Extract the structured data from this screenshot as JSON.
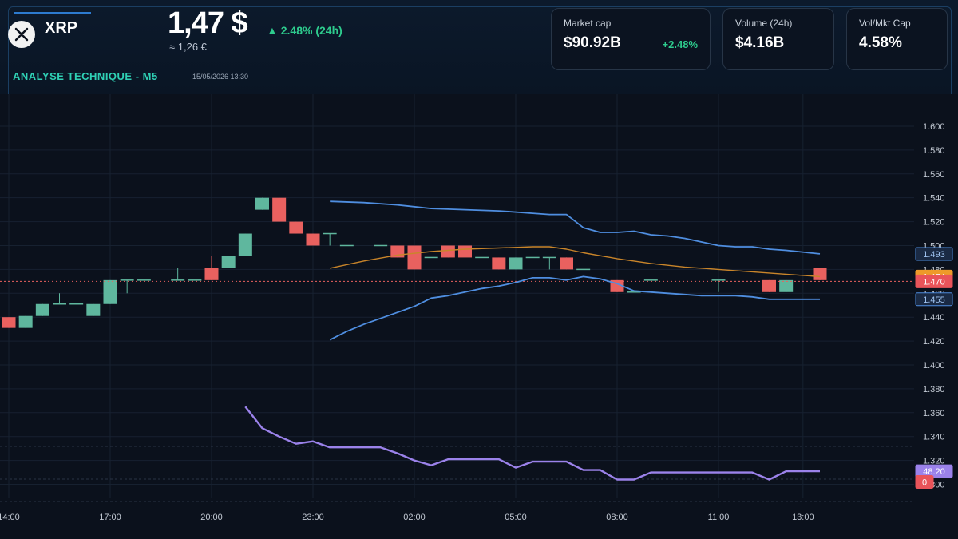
{
  "header": {
    "coin": "XRP",
    "price": "1,47 $",
    "change": "▲ 2.48% (24h)",
    "price_eur": "≈ 1,26 €",
    "analysis_label": "ANALYSE TECHNIQUE - M5",
    "timestamp": "15/05/2026 13:30"
  },
  "cards": {
    "market_cap": {
      "label": "Market cap",
      "value": "$90.92B",
      "change": "+2.48%"
    },
    "volume": {
      "label": "Volume (24h)",
      "value": "$4.16B"
    },
    "vol_mkt": {
      "label": "Vol/Mkt Cap",
      "value": "4.58%"
    }
  },
  "colors": {
    "up": "#5fb79e",
    "down": "#e9615f",
    "bands": "#4f8ee0",
    "ma": "#c9852a",
    "rsi": "#9b82ea",
    "price_line": "#e9615f"
  },
  "chart_data": {
    "type": "candlestick",
    "x_tick_labels": [
      "14:00",
      "17:00",
      "20:00",
      "23:00",
      "02:00",
      "05:00",
      "08:00",
      "11:00",
      "13:00"
    ],
    "x_tick_hours": [
      14,
      17,
      20,
      23,
      26,
      29,
      32,
      35,
      37.5
    ],
    "x_range_hours": [
      14,
      38
    ],
    "price_ticks": [
      "1.300",
      "1.320",
      "1.340",
      "1.360",
      "1.380",
      "1.400",
      "1.420",
      "1.440",
      "1.460",
      "1.480",
      "1.500",
      "1.520",
      "1.540",
      "1.560",
      "1.580",
      "1.600"
    ],
    "ylim": [
      1.295,
      1.608
    ],
    "candles": [
      {
        "t": 14.0,
        "o": 1.44,
        "c": 1.431,
        "h": 1.44,
        "l": 1.431
      },
      {
        "t": 14.5,
        "o": 1.431,
        "c": 1.441,
        "h": 1.441,
        "l": 1.431
      },
      {
        "t": 15.0,
        "o": 1.441,
        "c": 1.451,
        "h": 1.451,
        "l": 1.441
      },
      {
        "t": 15.5,
        "o": 1.451,
        "c": 1.451,
        "h": 1.46,
        "l": 1.451
      },
      {
        "t": 16.0,
        "o": 1.451,
        "c": 1.451,
        "h": 1.451,
        "l": 1.451
      },
      {
        "t": 16.5,
        "o": 1.441,
        "c": 1.451,
        "h": 1.451,
        "l": 1.441
      },
      {
        "t": 17.0,
        "o": 1.451,
        "c": 1.471,
        "h": 1.471,
        "l": 1.451
      },
      {
        "t": 17.5,
        "o": 1.471,
        "c": 1.471,
        "h": 1.471,
        "l": 1.46
      },
      {
        "t": 18.0,
        "o": 1.471,
        "c": 1.471,
        "h": 1.471,
        "l": 1.471
      },
      {
        "t": 19.0,
        "o": 1.471,
        "c": 1.471,
        "h": 1.481,
        "l": 1.471
      },
      {
        "t": 19.5,
        "o": 1.471,
        "c": 1.471,
        "h": 1.471,
        "l": 1.471
      },
      {
        "t": 20.0,
        "o": 1.481,
        "c": 1.471,
        "h": 1.491,
        "l": 1.471
      },
      {
        "t": 20.5,
        "o": 1.481,
        "c": 1.491,
        "h": 1.491,
        "l": 1.481
      },
      {
        "t": 21.0,
        "o": 1.491,
        "c": 1.51,
        "h": 1.51,
        "l": 1.491
      },
      {
        "t": 21.5,
        "o": 1.53,
        "c": 1.54,
        "h": 1.54,
        "l": 1.53
      },
      {
        "t": 22.0,
        "o": 1.54,
        "c": 1.52,
        "h": 1.54,
        "l": 1.52
      },
      {
        "t": 22.5,
        "o": 1.52,
        "c": 1.51,
        "h": 1.52,
        "l": 1.51
      },
      {
        "t": 23.0,
        "o": 1.51,
        "c": 1.5,
        "h": 1.51,
        "l": 1.5
      },
      {
        "t": 23.5,
        "o": 1.51,
        "c": 1.51,
        "h": 1.51,
        "l": 1.5
      },
      {
        "t": 24.0,
        "o": 1.5,
        "c": 1.5,
        "h": 1.5,
        "l": 1.5
      },
      {
        "t": 25.0,
        "o": 1.5,
        "c": 1.5,
        "h": 1.5,
        "l": 1.5
      },
      {
        "t": 25.5,
        "o": 1.5,
        "c": 1.49,
        "h": 1.5,
        "l": 1.49
      },
      {
        "t": 26.0,
        "o": 1.5,
        "c": 1.48,
        "h": 1.5,
        "l": 1.48
      },
      {
        "t": 26.5,
        "o": 1.49,
        "c": 1.49,
        "h": 1.49,
        "l": 1.49
      },
      {
        "t": 27.0,
        "o": 1.5,
        "c": 1.49,
        "h": 1.5,
        "l": 1.49
      },
      {
        "t": 27.5,
        "o": 1.5,
        "c": 1.49,
        "h": 1.5,
        "l": 1.49
      },
      {
        "t": 28.0,
        "o": 1.49,
        "c": 1.49,
        "h": 1.49,
        "l": 1.49
      },
      {
        "t": 28.5,
        "o": 1.49,
        "c": 1.48,
        "h": 1.49,
        "l": 1.48
      },
      {
        "t": 29.0,
        "o": 1.48,
        "c": 1.49,
        "h": 1.49,
        "l": 1.48
      },
      {
        "t": 29.5,
        "o": 1.49,
        "c": 1.49,
        "h": 1.49,
        "l": 1.49
      },
      {
        "t": 30.0,
        "o": 1.49,
        "c": 1.49,
        "h": 1.49,
        "l": 1.48
      },
      {
        "t": 30.5,
        "o": 1.49,
        "c": 1.48,
        "h": 1.49,
        "l": 1.48
      },
      {
        "t": 31.0,
        "o": 1.48,
        "c": 1.48,
        "h": 1.48,
        "l": 1.48
      },
      {
        "t": 32.0,
        "o": 1.471,
        "c": 1.461,
        "h": 1.471,
        "l": 1.461
      },
      {
        "t": 32.5,
        "o": 1.461,
        "c": 1.461,
        "h": 1.461,
        "l": 1.461
      },
      {
        "t": 33.0,
        "o": 1.471,
        "c": 1.471,
        "h": 1.471,
        "l": 1.471
      },
      {
        "t": 35.0,
        "o": 1.471,
        "c": 1.471,
        "h": 1.471,
        "l": 1.461
      },
      {
        "t": 36.5,
        "o": 1.471,
        "c": 1.461,
        "h": 1.471,
        "l": 1.461
      },
      {
        "t": 37.0,
        "o": 1.461,
        "c": 1.471,
        "h": 1.471,
        "l": 1.461
      },
      {
        "t": 38.0,
        "o": 1.481,
        "c": 1.471,
        "h": 1.481,
        "l": 1.471
      }
    ],
    "bollinger_upper": [
      [
        23.5,
        1.537
      ],
      [
        24.5,
        1.536
      ],
      [
        25.5,
        1.534
      ],
      [
        26.5,
        1.531
      ],
      [
        27.5,
        1.53
      ],
      [
        28.5,
        1.529
      ],
      [
        29.5,
        1.527
      ],
      [
        30.0,
        1.526
      ],
      [
        30.5,
        1.526
      ],
      [
        31.0,
        1.515
      ],
      [
        31.5,
        1.511
      ],
      [
        32.0,
        1.511
      ],
      [
        32.5,
        1.512
      ],
      [
        33.0,
        1.509
      ],
      [
        33.5,
        1.508
      ],
      [
        34.0,
        1.506
      ],
      [
        34.5,
        1.503
      ],
      [
        35.0,
        1.5
      ],
      [
        35.5,
        1.499
      ],
      [
        36.0,
        1.499
      ],
      [
        36.5,
        1.497
      ],
      [
        37.0,
        1.496
      ],
      [
        38.0,
        1.493
      ]
    ],
    "bollinger_lower": [
      [
        23.5,
        1.421
      ],
      [
        24.0,
        1.428
      ],
      [
        24.5,
        1.434
      ],
      [
        25.0,
        1.439
      ],
      [
        25.5,
        1.444
      ],
      [
        26.0,
        1.449
      ],
      [
        26.5,
        1.456
      ],
      [
        27.0,
        1.458
      ],
      [
        27.5,
        1.461
      ],
      [
        28.0,
        1.464
      ],
      [
        28.5,
        1.466
      ],
      [
        29.0,
        1.469
      ],
      [
        29.5,
        1.473
      ],
      [
        30.0,
        1.473
      ],
      [
        30.5,
        1.471
      ],
      [
        31.0,
        1.474
      ],
      [
        31.5,
        1.472
      ],
      [
        32.0,
        1.468
      ],
      [
        32.5,
        1.462
      ],
      [
        33.0,
        1.461
      ],
      [
        33.5,
        1.46
      ],
      [
        34.0,
        1.459
      ],
      [
        34.5,
        1.458
      ],
      [
        35.0,
        1.458
      ],
      [
        35.5,
        1.458
      ],
      [
        36.0,
        1.457
      ],
      [
        36.5,
        1.455
      ],
      [
        37.0,
        1.455
      ],
      [
        38.0,
        1.455
      ]
    ],
    "moving_average": [
      [
        23.5,
        1.481
      ],
      [
        24.5,
        1.487
      ],
      [
        25.5,
        1.492
      ],
      [
        26.5,
        1.495
      ],
      [
        27.5,
        1.497
      ],
      [
        28.5,
        1.498
      ],
      [
        29.5,
        1.499
      ],
      [
        30.0,
        1.499
      ],
      [
        30.5,
        1.497
      ],
      [
        31.0,
        1.494
      ],
      [
        32.0,
        1.489
      ],
      [
        33.0,
        1.485
      ],
      [
        34.0,
        1.482
      ],
      [
        35.0,
        1.48
      ],
      [
        36.0,
        1.478
      ],
      [
        37.0,
        1.476
      ],
      [
        38.0,
        1.474
      ]
    ],
    "rsi": [
      [
        21.0,
        1.365
      ],
      [
        21.5,
        1.347
      ],
      [
        22.0,
        1.34
      ],
      [
        22.5,
        1.334
      ],
      [
        23.0,
        1.336
      ],
      [
        23.5,
        1.331
      ],
      [
        24.0,
        1.331
      ],
      [
        25.0,
        1.331
      ],
      [
        25.5,
        1.326
      ],
      [
        26.0,
        1.32
      ],
      [
        26.5,
        1.316
      ],
      [
        27.0,
        1.321
      ],
      [
        28.0,
        1.321
      ],
      [
        28.5,
        1.321
      ],
      [
        29.0,
        1.314
      ],
      [
        29.5,
        1.319
      ],
      [
        30.0,
        1.319
      ],
      [
        30.5,
        1.319
      ],
      [
        31.0,
        1.312
      ],
      [
        31.5,
        1.312
      ],
      [
        32.0,
        1.304
      ],
      [
        32.5,
        1.304
      ],
      [
        33.0,
        1.31
      ],
      [
        34.0,
        1.31
      ],
      [
        35.0,
        1.31
      ],
      [
        36.0,
        1.31
      ],
      [
        36.5,
        1.304
      ],
      [
        37.0,
        1.311
      ],
      [
        38.0,
        1.311
      ]
    ],
    "current_price": 1.47,
    "price_badges": [
      {
        "label": "1.493",
        "value": 1.493,
        "kind": "bands"
      },
      {
        "label": "1.474",
        "value": 1.474,
        "kind": "ma"
      },
      {
        "label": "1.470",
        "value": 1.47,
        "kind": "price"
      },
      {
        "label": "1.455",
        "value": 1.455,
        "kind": "bands"
      },
      {
        "label": "48.20",
        "value": 1.311,
        "kind": "rsi"
      },
      {
        "label": "0",
        "value": 1.302,
        "kind": "price"
      }
    ]
  }
}
